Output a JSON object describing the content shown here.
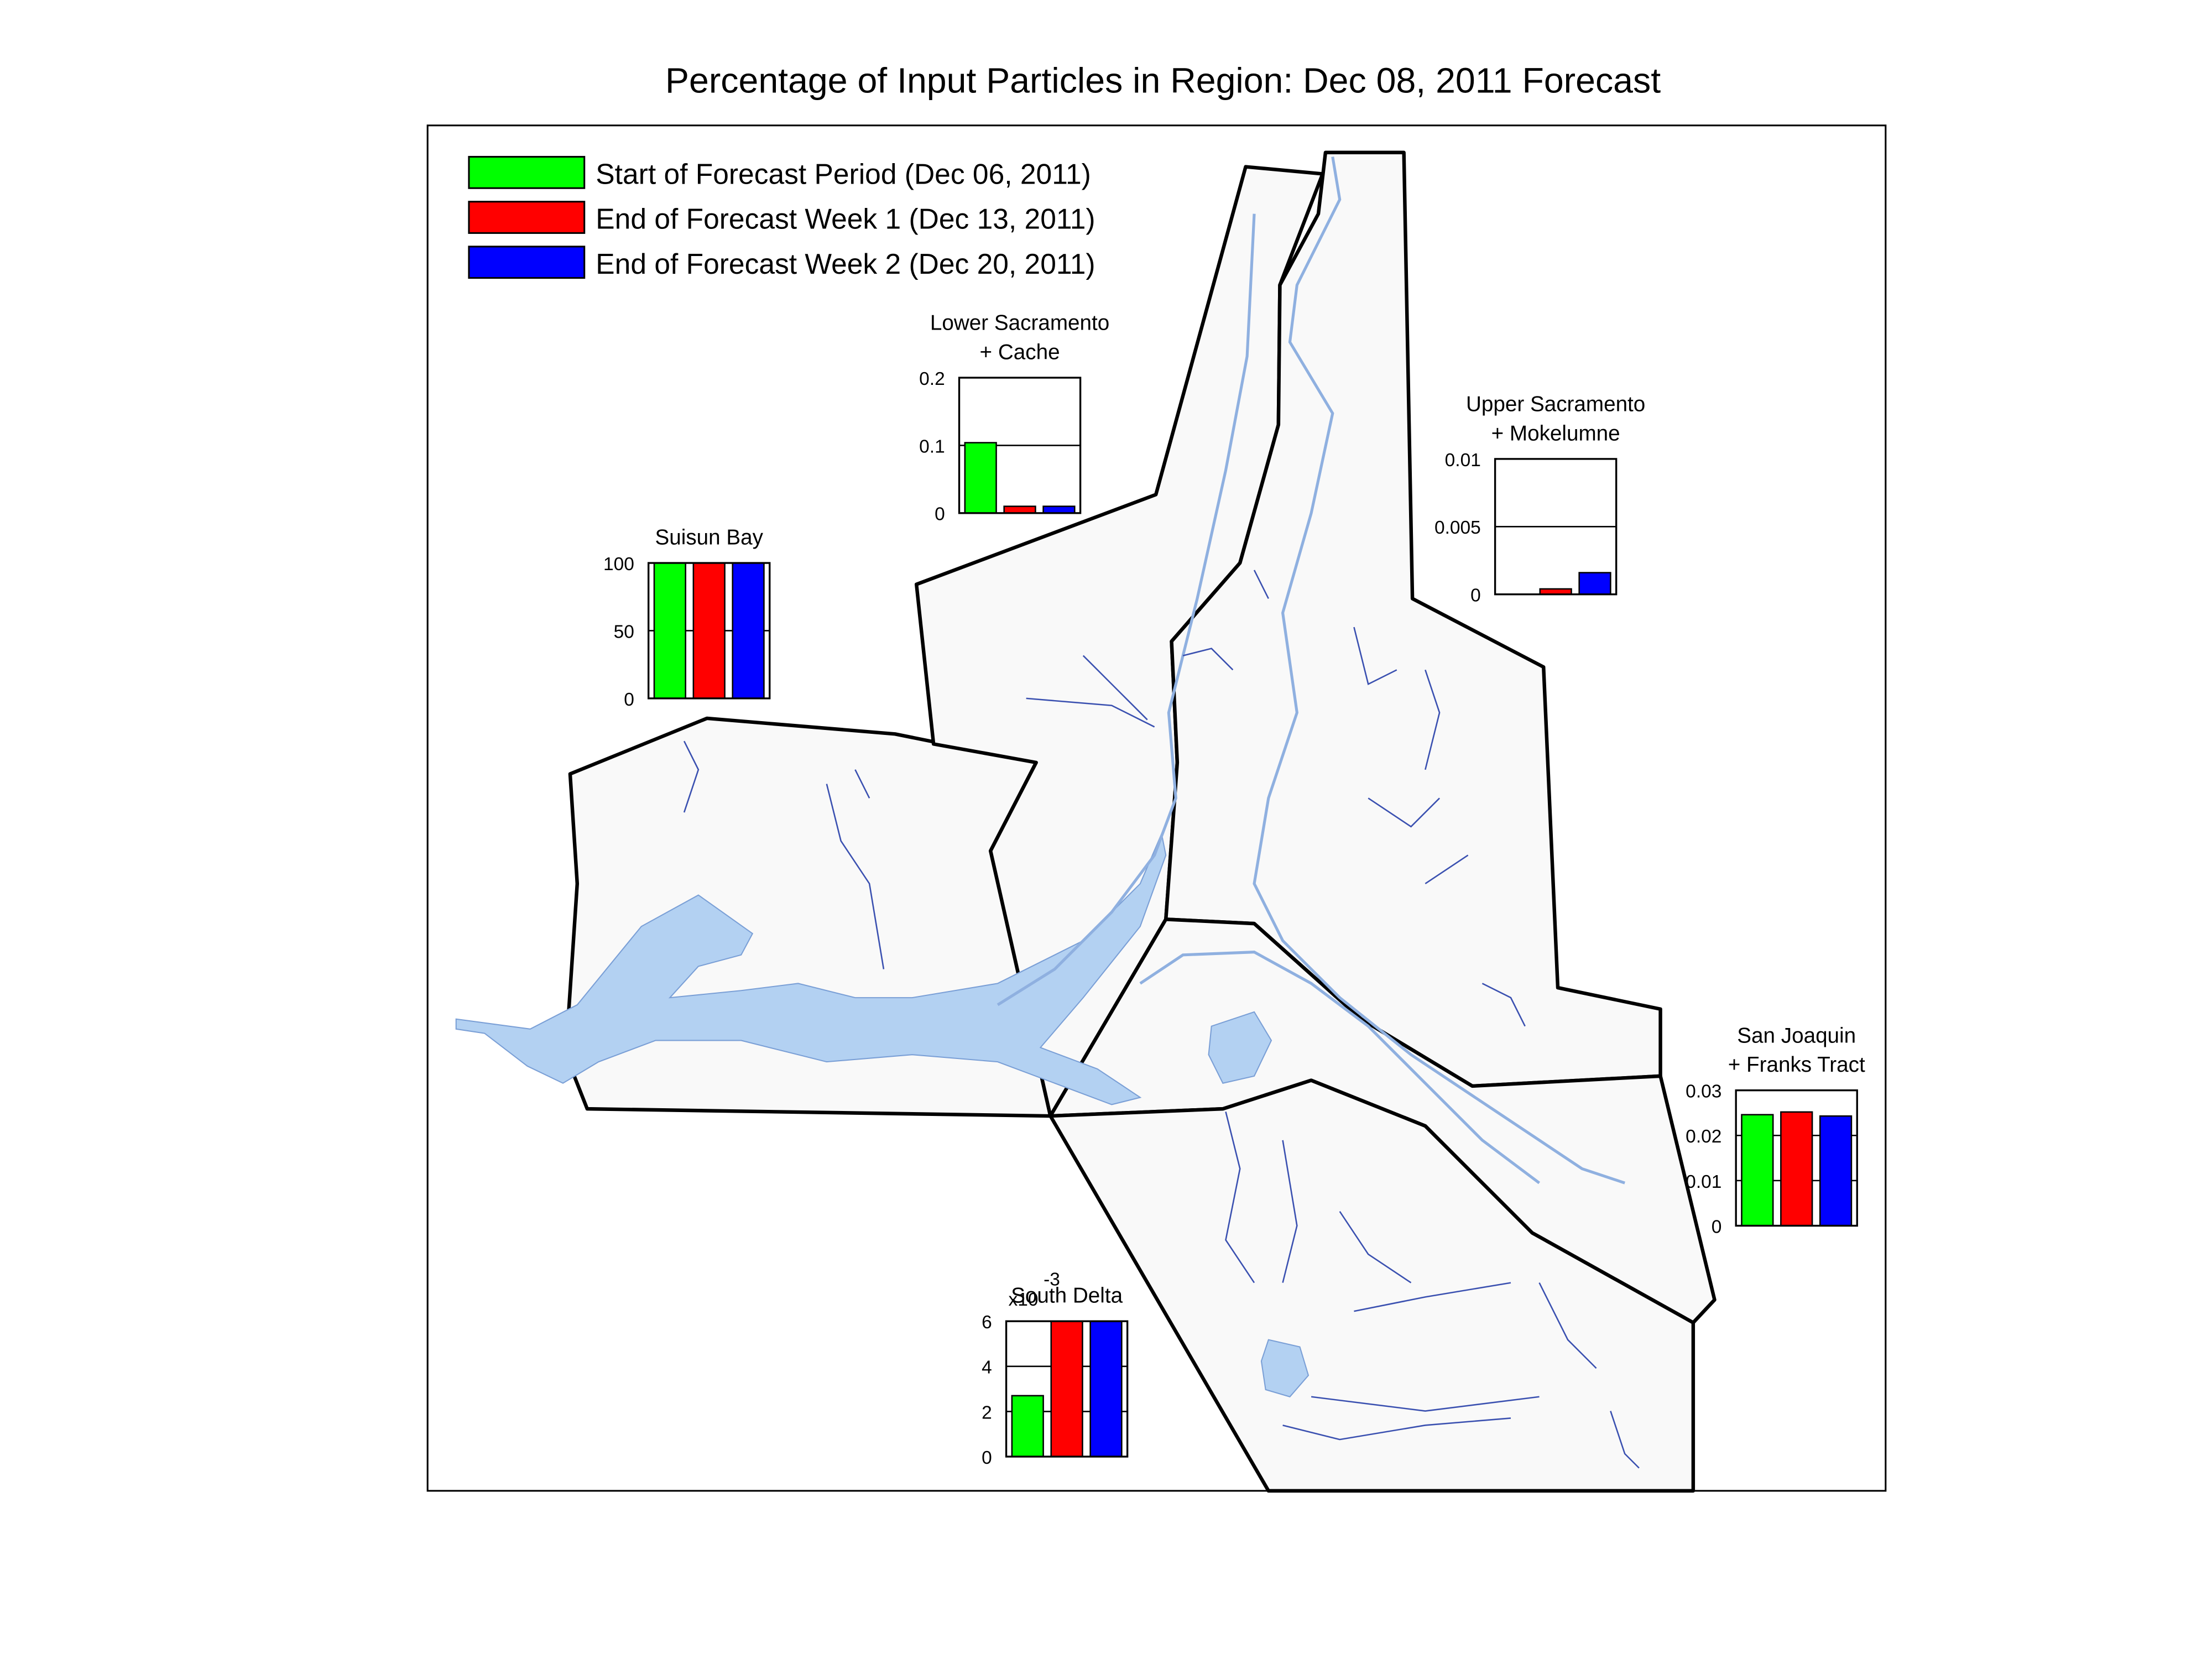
{
  "title": "Percentage of Input Particles in Region: Dec 08, 2011 Forecast",
  "legend": {
    "entries": [
      {
        "name": "Start of Forecast Period (Dec 06, 2011)",
        "color": "#00ff00"
      },
      {
        "name": "End of Forecast Week 1 (Dec 13, 2011)",
        "color": "#ff0000"
      },
      {
        "name": "End of Forecast Week 2 (Dec 20, 2011)",
        "color": "#0000ff"
      }
    ]
  },
  "chart_data": [
    {
      "type": "bar",
      "title": [
        "Lower Sacramento",
        "+ Cache"
      ],
      "values": [
        0.104,
        0.01,
        0.01
      ],
      "ylim": [
        0,
        0.2
      ],
      "yticks": [
        0,
        0.1,
        0.2
      ],
      "grid": true
    },
    {
      "type": "bar",
      "title": [
        "Suisun Bay"
      ],
      "values": [
        100,
        100,
        100
      ],
      "ylim": [
        0,
        100
      ],
      "yticks": [
        0,
        50,
        100
      ],
      "grid": true
    },
    {
      "type": "bar",
      "title": [
        "Upper Sacramento",
        "+ Mokelumne"
      ],
      "values": [
        0,
        0.0004,
        0.0016
      ],
      "ylim": [
        0,
        0.01
      ],
      "yticks": [
        0,
        0.005,
        0.01
      ],
      "grid": true
    },
    {
      "type": "bar",
      "title": [
        "San Joaquin",
        "+ Franks Tract"
      ],
      "values": [
        0.0246,
        0.0252,
        0.0243
      ],
      "ylim": [
        0,
        0.03
      ],
      "yticks": [
        0,
        0.01,
        0.02,
        0.03
      ],
      "grid": true
    },
    {
      "type": "bar",
      "title": [
        "South Delta"
      ],
      "values": [
        2.7,
        6,
        6
      ],
      "ylim": [
        0,
        6
      ],
      "yticks": [
        0,
        2,
        4,
        6
      ],
      "grid": true,
      "y_multiplier": {
        "base": "x10",
        "exponent": "-3"
      }
    }
  ]
}
